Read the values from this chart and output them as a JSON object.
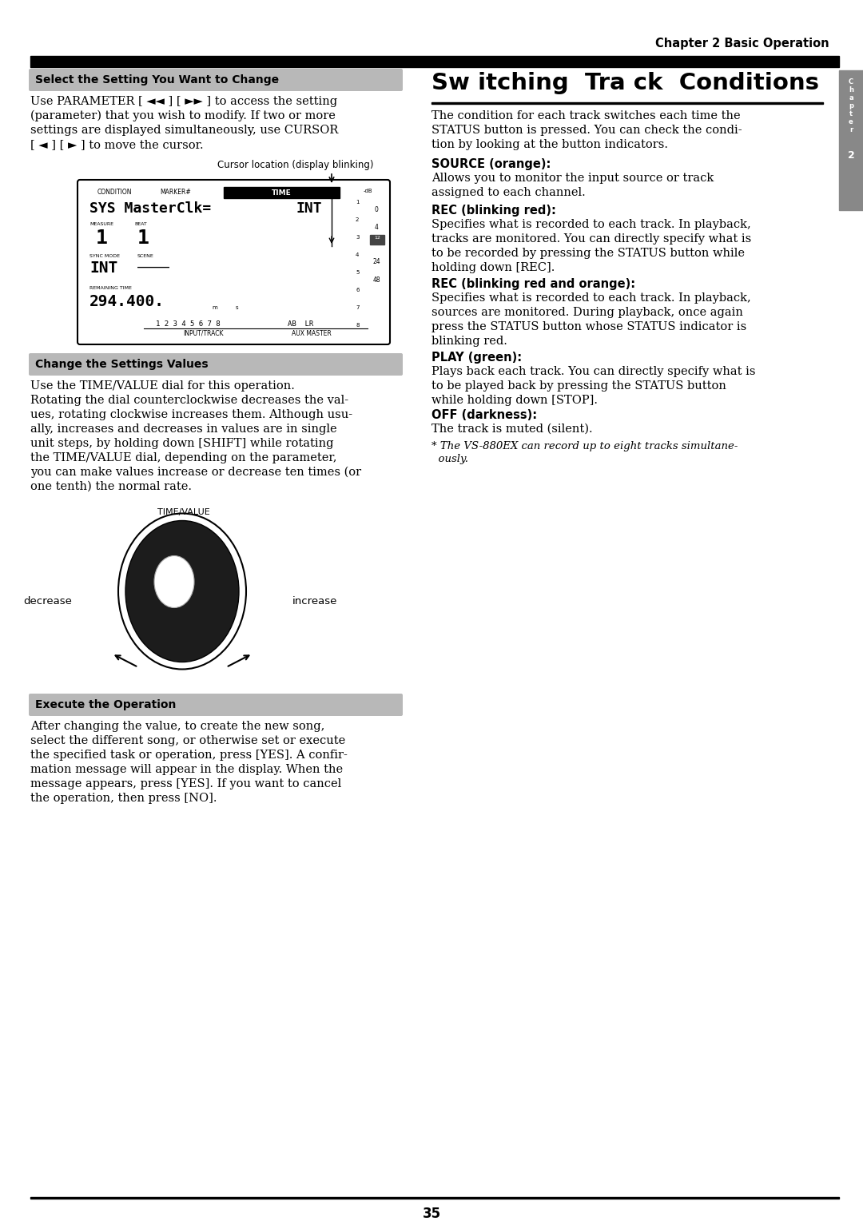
{
  "page_bg": "#ffffff",
  "header_text": "Chapter 2 Basic Operation",
  "page_number": "35",
  "section1_header": "Select the Setting You Want to Change",
  "section1_text_line1": "Use PARAMETER [ ◄◄ ] [ ►► ] to access the setting",
  "section1_text_line2": "(parameter) that you wish to modify. If two or more",
  "section1_text_line3": "settings are displayed simultaneously, use CURSOR",
  "section1_text_line4": "[ ◄ ] [ ► ] to move the cursor.",
  "section1_cursor_label": "Cursor location (display blinking)",
  "section2_header": "Change the Settings Values",
  "section2_text_line1": "Use the TIME/VALUE dial for this operation.",
  "section2_text_line2": "Rotating the dial counterclockwise decreases the val-",
  "section2_text_line3": "ues, rotating clockwise increases them. Although usu-",
  "section2_text_line4": "ally, increases and decreases in values are in single",
  "section2_text_line5": "unit steps, by holding down [SHIFT] while rotating",
  "section2_text_line6": "the TIME/VALUE dial, depending on the parameter,",
  "section2_text_line7": "you can make values increase or decrease ten times (or",
  "section2_text_line8": "one tenth) the normal rate.",
  "dial_label": "TIME/VALUE",
  "dial_decrease": "decrease",
  "dial_increase": "increase",
  "section3_header": "Execute the Operation",
  "section3_text_line1": "After changing the value, to create the new song,",
  "section3_text_line2": "select the different song, or otherwise set or execute",
  "section3_text_line3": "the specified task or operation, press [YES]. A confir-",
  "section3_text_line4": "mation message will appear in the display. When the",
  "section3_text_line5": "message appears, press [YES]. If you want to cancel",
  "section3_text_line6": "the operation, then press [NO].",
  "right_title": "Sw itching  Tra ck  Conditions",
  "right_intro_line1": "The condition for each track switches each time the",
  "right_intro_line2": "STATUS button is pressed. You can check the condi-",
  "right_intro_line3": "tion by looking at the button indicators.",
  "source_header": "SOURCE (orange):",
  "source_line1": "Allows you to monitor the input source or track",
  "source_line2": "assigned to each channel.",
  "rec_red_header": "REC (blinking red):",
  "rec_red_line1": "Specifies what is recorded to each track. In playback,",
  "rec_red_line2": "tracks are monitored. You can directly specify what is",
  "rec_red_line3": "to be recorded by pressing the STATUS button while",
  "rec_red_line4": "holding down [REC].",
  "rec_both_header": "REC (blinking red and orange):",
  "rec_both_line1": "Specifies what is recorded to each track. In playback,",
  "rec_both_line2": "sources are monitored. During playback, once again",
  "rec_both_line3": "press the STATUS button whose STATUS indicator is",
  "rec_both_line4": "blinking red.",
  "play_header": "PLAY (green):",
  "play_line1": "Plays back each track. You can directly specify what is",
  "play_line2": "to be played back by pressing the STATUS button",
  "play_line3": "while holding down [STOP].",
  "off_header": "OFF (darkness):",
  "off_text": "The track is muted (silent).",
  "footnote_line1": "* The VS-880EX can record up to eight tracks simultane-",
  "footnote_line2": "  ously.",
  "tab_color": "#888888",
  "header_color": "#c8c8c8",
  "black": "#000000",
  "white": "#ffffff"
}
